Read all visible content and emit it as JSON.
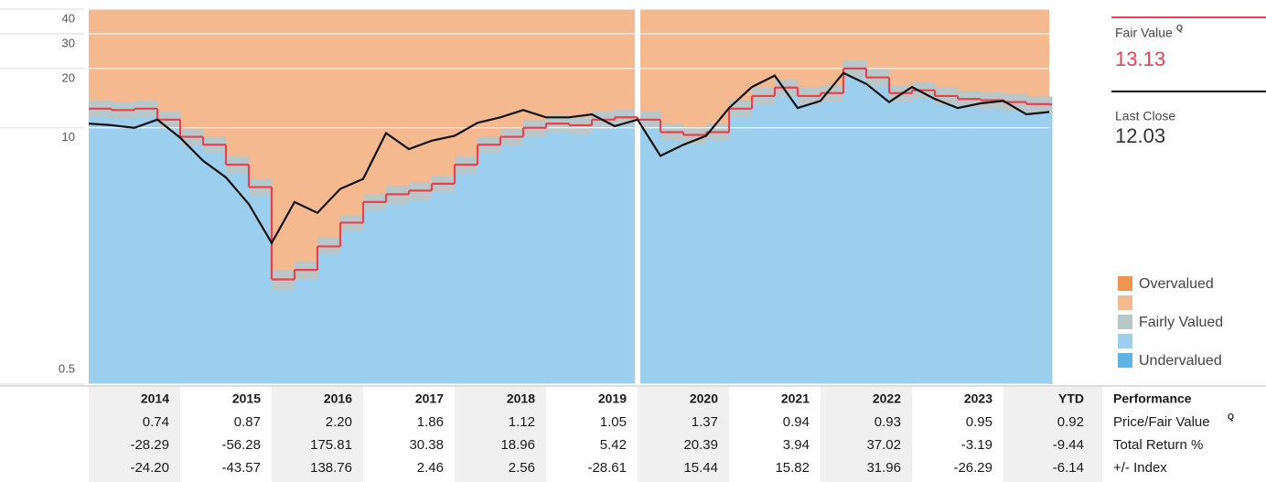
{
  "chart_data": {
    "type": "line",
    "scale": "log",
    "x": [
      2014,
      2014.25,
      2014.5,
      2014.75,
      2015,
      2015.25,
      2015.5,
      2015.75,
      2016,
      2016.25,
      2016.5,
      2016.75,
      2017,
      2017.25,
      2017.5,
      2017.75,
      2018,
      2018.25,
      2018.5,
      2018.75,
      2019,
      2019.25,
      2019.5,
      2019.75,
      2020,
      2020.25,
      2020.5,
      2020.75,
      2021,
      2021.25,
      2021.5,
      2021.75,
      2022,
      2022.25,
      2022.5,
      2022.75,
      2023,
      2023.25,
      2023.5,
      2023.75,
      2024,
      2024.25,
      2024.5
    ],
    "xlim": [
      2014,
      2024.5
    ],
    "ylim": [
      0.5,
      40
    ],
    "yticks": [
      0.5,
      10,
      20,
      30,
      40
    ],
    "series": [
      {
        "name": "Fair Value",
        "color": "#e8414f",
        "step": true,
        "values": [
          12.5,
          12.3,
          12.5,
          11,
          9,
          8.2,
          6.5,
          5,
          1.7,
          1.9,
          2.5,
          3.3,
          4.2,
          4.6,
          4.8,
          5.2,
          6.5,
          8.2,
          9,
          10,
          10.5,
          10.3,
          11,
          11.3,
          11,
          9.5,
          9.2,
          9.5,
          12.5,
          14.5,
          16,
          14.5,
          15,
          20,
          18,
          15,
          15.5,
          14.5,
          14,
          13.8,
          13.5,
          13.2,
          13.13
        ]
      },
      {
        "name": "Last Close",
        "color": "#111111",
        "values": [
          10.5,
          10.3,
          10,
          11,
          8.9,
          6.8,
          5.6,
          4.1,
          2.6,
          4.2,
          3.7,
          4.9,
          5.5,
          9.4,
          7.8,
          8.6,
          9.1,
          10.6,
          11.3,
          12.3,
          11.3,
          11.3,
          11.7,
          10.2,
          11,
          7.2,
          8.2,
          9.1,
          12.6,
          16.1,
          18.4,
          12.6,
          13.7,
          19,
          16.7,
          13.5,
          16.1,
          14,
          12.6,
          13.3,
          13.7,
          11.7,
          12.03
        ]
      }
    ],
    "legend": [
      {
        "name": "Overvalued",
        "color": "#f0954f"
      },
      {
        "color": "#f5b990"
      },
      {
        "name": "Fairly Valued",
        "color": "#b9c7c9",
        "values": [
          13.8,
          13.5,
          13.8,
          12.1,
          9.9,
          9,
          7.2,
          5.5,
          1.9,
          2.1,
          2.8,
          3.6,
          4.6,
          5.1,
          5.3,
          5.7,
          7.2,
          9,
          9.9,
          11,
          11.6,
          11.3,
          12.1,
          12.4,
          12.1,
          10.5,
          10.1,
          10.5,
          13.8,
          16,
          17.6,
          16,
          16.5,
          22,
          19.8,
          16.5,
          17.1,
          16,
          15.4,
          15.2,
          14.9,
          14.5,
          14.4
        ]
      },
      {
        "color": "#9ccfee",
        "values": [
          11.3,
          11.1,
          11.3,
          9.9,
          8.1,
          7.4,
          5.9,
          4.5,
          1.5,
          1.7,
          2.3,
          3,
          3.8,
          4.1,
          4.3,
          4.7,
          5.9,
          7.4,
          8.1,
          9,
          9.5,
          9.3,
          9.9,
          10.2,
          9.9,
          8.6,
          8.3,
          8.6,
          11.3,
          13.1,
          14.4,
          13.1,
          13.5,
          18,
          16.2,
          13.5,
          14,
          13.1,
          12.6,
          12.4,
          12.2,
          11.9,
          11.8
        ]
      },
      {
        "name": "Undervalued",
        "color": "#5db3e4"
      }
    ],
    "fair_value": "13.13",
    "last_close": "12.03",
    "badge": "Q"
  },
  "table": {
    "title": "Performance",
    "columns": [
      "2014",
      "2015",
      "2016",
      "2017",
      "2018",
      "2019",
      "2020",
      "2021",
      "2022",
      "2023",
      "YTD"
    ],
    "rows": [
      {
        "label": "Price/Fair Value",
        "values": [
          "0.74",
          "0.87",
          "2.20",
          "1.86",
          "1.12",
          "1.05",
          "1.37",
          "0.94",
          "0.93",
          "0.95",
          "0.92"
        ]
      },
      {
        "label": "Total Return %",
        "values": [
          "-28.29",
          "-56.28",
          "175.81",
          "30.38",
          "18.96",
          "5.42",
          "20.39",
          "3.94",
          "37.02",
          "-3.19",
          "-9.44"
        ]
      },
      {
        "label": "+/- Index",
        "values": [
          "-24.20",
          "-43.57",
          "138.76",
          "2.46",
          "2.56",
          "-28.61",
          "15.44",
          "15.82",
          "31.96",
          "-26.29",
          "-6.14"
        ]
      }
    ]
  }
}
